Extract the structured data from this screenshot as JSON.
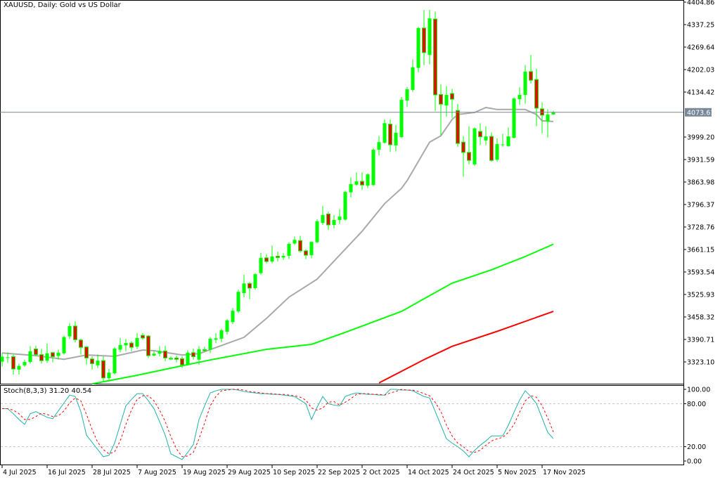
{
  "header": {
    "title": "XAUUSD, Daily:  Gold vs US Dollar"
  },
  "colors": {
    "bull": "#00ff00",
    "bear": "#ff0000",
    "ma_fast": "#a9a9a9",
    "ma_mid": "#00ff00",
    "ma_slow": "#ff0000",
    "stoch_main": "#20b2aa",
    "stoch_signal": "#ff0000",
    "price_line": "#778899",
    "grid_level": "#c0c0c0"
  },
  "chart_data": [
    {
      "type": "candlestick",
      "symbol": "XAUUSD",
      "timeframe": "Daily",
      "y_ticks": [
        "4404.86",
        "4337.25",
        "4269.64",
        "4202.03",
        "4134.42",
        "3999.20",
        "3931.59",
        "3863.98",
        "3796.37",
        "3728.76",
        "3661.15",
        "3593.54",
        "3525.93",
        "3458.32",
        "3390.71",
        "3323.10"
      ],
      "ylim": [
        3323.1,
        4404.86
      ],
      "current_price": "4073.61",
      "x_ticks": [
        {
          "index": 0,
          "label": "4 Jul 2025"
        },
        {
          "index": 8,
          "label": "16 Jul 2025"
        },
        {
          "index": 16,
          "label": "28 Jul 2025"
        },
        {
          "index": 24,
          "label": "7 Aug 2025"
        },
        {
          "index": 32,
          "label": "19 Aug 2025"
        },
        {
          "index": 40,
          "label": "29 Aug 2025"
        },
        {
          "index": 48,
          "label": "10 Sep 2025"
        },
        {
          "index": 56,
          "label": "22 Sep 2025"
        },
        {
          "index": 64,
          "label": "2 Oct 2025"
        },
        {
          "index": 72,
          "label": "14 Oct 2025"
        },
        {
          "index": 80,
          "label": "24 Oct 2025"
        },
        {
          "index": 88,
          "label": "5 Nov 2025"
        },
        {
          "index": 96,
          "label": "17 Nov 2025"
        }
      ],
      "ohlc": [
        [
          3324,
          3350,
          3310,
          3339
        ],
        [
          3336,
          3352,
          3320,
          3337
        ],
        [
          3339,
          3345,
          3285,
          3302
        ],
        [
          3300,
          3318,
          3285,
          3311
        ],
        [
          3313,
          3330,
          3308,
          3323
        ],
        [
          3323,
          3370,
          3318,
          3355
        ],
        [
          3362,
          3372,
          3340,
          3345
        ],
        [
          3345,
          3362,
          3318,
          3327
        ],
        [
          3327,
          3378,
          3320,
          3349
        ],
        [
          3351,
          3353,
          3322,
          3339
        ],
        [
          3341,
          3360,
          3330,
          3351
        ],
        [
          3349,
          3402,
          3345,
          3398
        ],
        [
          3400,
          3440,
          3392,
          3431
        ],
        [
          3431,
          3445,
          3382,
          3390
        ],
        [
          3389,
          3393,
          3345,
          3367
        ],
        [
          3368,
          3370,
          3315,
          3335
        ],
        [
          3332,
          3340,
          3300,
          3318
        ],
        [
          3313,
          3345,
          3305,
          3327
        ],
        [
          3327,
          3340,
          3265,
          3275
        ],
        [
          3274,
          3302,
          3270,
          3291
        ],
        [
          3289,
          3368,
          3285,
          3363
        ],
        [
          3360,
          3395,
          3352,
          3374
        ],
        [
          3373,
          3392,
          3355,
          3380
        ],
        [
          3380,
          3385,
          3355,
          3367
        ],
        [
          3369,
          3410,
          3362,
          3395
        ],
        [
          3403,
          3410,
          3390,
          3395
        ],
        [
          3401,
          3404,
          3335,
          3342
        ],
        [
          3342,
          3356,
          3340,
          3348
        ],
        [
          3348,
          3370,
          3340,
          3356
        ],
        [
          3356,
          3372,
          3325,
          3335
        ],
        [
          3334,
          3340,
          3328,
          3333
        ],
        [
          3335,
          3342,
          3322,
          3331
        ],
        [
          3333,
          3340,
          3305,
          3314
        ],
        [
          3314,
          3358,
          3312,
          3351
        ],
        [
          3351,
          3363,
          3330,
          3339
        ],
        [
          3330,
          3370,
          3315,
          3361
        ],
        [
          3360,
          3369,
          3352,
          3357
        ],
        [
          3360,
          3398,
          3350,
          3393
        ],
        [
          3390,
          3410,
          3380,
          3394
        ],
        [
          3393,
          3423,
          3382,
          3418
        ],
        [
          3414,
          3452,
          3405,
          3448
        ],
        [
          3443,
          3485,
          3437,
          3477
        ],
        [
          3475,
          3540,
          3470,
          3534
        ],
        [
          3530,
          3585,
          3518,
          3559
        ],
        [
          3559,
          3563,
          3512,
          3545
        ],
        [
          3545,
          3590,
          3540,
          3587
        ],
        [
          3590,
          3651,
          3585,
          3636
        ],
        [
          3636,
          3647,
          3620,
          3625
        ],
        [
          3625,
          3673,
          3620,
          3640
        ],
        [
          3641,
          3655,
          3625,
          3637
        ],
        [
          3637,
          3650,
          3630,
          3642
        ],
        [
          3642,
          3683,
          3632,
          3678
        ],
        [
          3679,
          3700,
          3675,
          3690
        ],
        [
          3688,
          3702,
          3652,
          3657
        ],
        [
          3657,
          3662,
          3632,
          3644
        ],
        [
          3644,
          3686,
          3635,
          3684
        ],
        [
          3683,
          3752,
          3680,
          3746
        ],
        [
          3741,
          3792,
          3735,
          3765
        ],
        [
          3768,
          3775,
          3720,
          3735
        ],
        [
          3735,
          3765,
          3725,
          3750
        ],
        [
          3750,
          3783,
          3738,
          3760
        ],
        [
          3751,
          3838,
          3748,
          3834
        ],
        [
          3833,
          3878,
          3818,
          3858
        ],
        [
          3856,
          3893,
          3852,
          3866
        ],
        [
          3866,
          3893,
          3840,
          3855
        ],
        [
          3853,
          3890,
          3846,
          3887
        ],
        [
          3855,
          3965,
          3852,
          3961
        ],
        [
          3961,
          4003,
          3944,
          3984
        ],
        [
          3982,
          4052,
          3980,
          4041
        ],
        [
          4038,
          4052,
          3955,
          3976
        ],
        [
          3974,
          4035,
          3957,
          4012
        ],
        [
          3999,
          4120,
          3996,
          4111
        ],
        [
          4109,
          4150,
          4090,
          4143
        ],
        [
          4141,
          4232,
          4135,
          4209
        ],
        [
          4207,
          4330,
          4194,
          4327
        ],
        [
          4327,
          4381,
          4215,
          4253
        ],
        [
          4246,
          4382,
          4218,
          4356
        ],
        [
          4354,
          4376,
          4078,
          4126
        ],
        [
          4127,
          4158,
          4004,
          4098
        ],
        [
          4094,
          4152,
          4060,
          4126
        ],
        [
          4130,
          4144,
          4057,
          4113
        ],
        [
          4079,
          4099,
          3970,
          3980
        ],
        [
          3984,
          4002,
          3880,
          3953
        ],
        [
          3953,
          4032,
          3917,
          3929
        ],
        [
          3917,
          4028,
          3912,
          4025
        ],
        [
          4016,
          4041,
          3975,
          4000
        ],
        [
          3989,
          4032,
          3975,
          4001
        ],
        [
          4001,
          4013,
          3925,
          3929
        ],
        [
          3931,
          3995,
          3925,
          3978
        ],
        [
          3975,
          4009,
          3970,
          3977
        ],
        [
          3972,
          4028,
          3970,
          4001
        ],
        [
          3997,
          4118,
          3995,
          4115
        ],
        [
          4113,
          4149,
          4096,
          4126
        ],
        [
          4126,
          4215,
          4100,
          4196
        ],
        [
          4196,
          4246,
          4160,
          4170
        ],
        [
          4172,
          4205,
          4032,
          4086
        ],
        [
          4084,
          4104,
          4010,
          4065
        ],
        [
          4046,
          4083,
          3998,
          4067
        ],
        [
          4067,
          4078,
          4066,
          4073.61
        ]
      ],
      "moving_averages": [
        {
          "role": "fast",
          "points": [
            [
              0,
              3350
            ],
            [
              6,
              3342
            ],
            [
              11,
              3331
            ],
            [
              15,
              3344
            ],
            [
              20,
              3340
            ],
            [
              25,
              3359
            ],
            [
              27,
              3357
            ],
            [
              32,
              3344
            ],
            [
              35,
              3348
            ],
            [
              43,
              3397
            ],
            [
              47,
              3454
            ],
            [
              51,
              3518
            ],
            [
              56,
              3572
            ],
            [
              60,
              3644
            ],
            [
              64,
              3716
            ],
            [
              68,
              3799
            ],
            [
              71,
              3845
            ],
            [
              72,
              3868
            ],
            [
              76,
              3984
            ],
            [
              78,
              4003
            ],
            [
              80,
              4052
            ],
            [
              81,
              4067
            ],
            [
              84,
              4073
            ],
            [
              86,
              4088
            ],
            [
              88,
              4082
            ],
            [
              93,
              4082
            ],
            [
              95,
              4067
            ],
            [
              96,
              4048
            ],
            [
              98,
              4046
            ]
          ]
        },
        {
          "role": "mid",
          "points": [
            [
              16,
              3257
            ],
            [
              24,
              3283
            ],
            [
              31,
              3308
            ],
            [
              37,
              3329
            ],
            [
              47,
              3361
            ],
            [
              55,
              3376
            ],
            [
              61,
              3412
            ],
            [
              71,
              3475
            ],
            [
              80,
              3560
            ],
            [
              87,
              3600
            ],
            [
              93,
              3640
            ],
            [
              98,
              3677
            ]
          ]
        },
        {
          "role": "slow",
          "points": [
            [
              67,
              3260
            ],
            [
              75,
              3330
            ],
            [
              80,
              3370
            ],
            [
              88,
              3415
            ],
            [
              98,
              3475
            ]
          ]
        }
      ]
    },
    {
      "type": "line",
      "indicator": "Stoch(8,3,3)",
      "label": "Stoch(8,3,3) 31.20 40.54",
      "ylim": [
        0,
        100
      ],
      "y_ticks": [
        "100.00",
        "80.00",
        "20.00",
        "0.00"
      ],
      "levels": [
        80,
        20
      ],
      "main": [
        73,
        73,
        66,
        58,
        51,
        66,
        69,
        65,
        61,
        59,
        70,
        81,
        92,
        90,
        69,
        36,
        26,
        16,
        6,
        8,
        25,
        51,
        77,
        86,
        94,
        94,
        84,
        73,
        55,
        36,
        10,
        6,
        2,
        12,
        23,
        58,
        77,
        95,
        98,
        100,
        100,
        100,
        99,
        97,
        96,
        95,
        94,
        94,
        93,
        93,
        92,
        91,
        90,
        85,
        80,
        58,
        75,
        90,
        80,
        78,
        77,
        90,
        93,
        95,
        94,
        93,
        93,
        92,
        92,
        100,
        100,
        99,
        99,
        98,
        94,
        90,
        88,
        69,
        50,
        31,
        25,
        20,
        14,
        6,
        15,
        22,
        28,
        35,
        35,
        35,
        50,
        68,
        85,
        98,
        90,
        80,
        60,
        40,
        31.2
      ],
      "signal": [
        73,
        73,
        71,
        66,
        58,
        58,
        62,
        67,
        65,
        62,
        63,
        70,
        81,
        88,
        84,
        65,
        44,
        26,
        16,
        10,
        13,
        28,
        51,
        71,
        86,
        91,
        91,
        84,
        71,
        55,
        34,
        17,
        6,
        7,
        12,
        31,
        53,
        77,
        90,
        98,
        99,
        100,
        100,
        99,
        97,
        96,
        95,
        94,
        94,
        93,
        93,
        92,
        91,
        89,
        85,
        74,
        71,
        74,
        82,
        83,
        78,
        82,
        87,
        93,
        94,
        94,
        93,
        93,
        92,
        95,
        97,
        100,
        99,
        99,
        97,
        94,
        91,
        82,
        69,
        50,
        35,
        25,
        20,
        13,
        12,
        15,
        22,
        28,
        31,
        33,
        40,
        51,
        68,
        84,
        91,
        89,
        77,
        60,
        40.54
      ]
    }
  ]
}
